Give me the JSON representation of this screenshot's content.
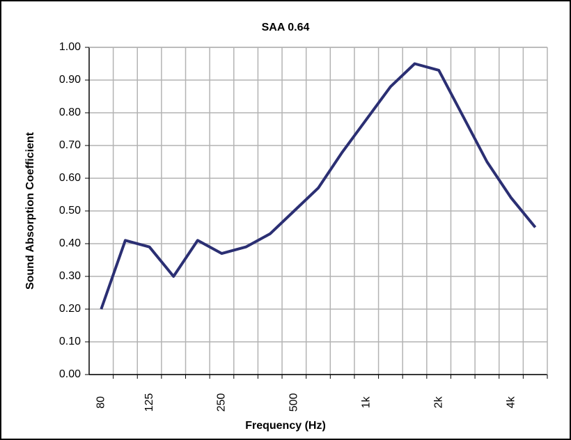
{
  "chart_data": {
    "type": "line",
    "title": "SAA 0.64",
    "x_label": "Frequency (Hz)",
    "y_label": "Sound Absorption Coefficient",
    "categories": [
      "80",
      null,
      "125",
      null,
      null,
      "250",
      null,
      null,
      "500",
      null,
      null,
      "1k",
      null,
      null,
      "2k",
      null,
      null,
      "4k",
      null
    ],
    "series": [
      {
        "name": "SAA 0.64",
        "color": "#2b2f73",
        "values": [
          0.2,
          0.41,
          0.39,
          0.3,
          0.41,
          0.37,
          0.39,
          0.43,
          0.5,
          0.57,
          0.68,
          0.78,
          0.88,
          0.95,
          0.93,
          0.79,
          0.65,
          0.54,
          0.45
        ]
      }
    ],
    "ylim": [
      0,
      1
    ],
    "yticks": [
      {
        "value": 0,
        "label": "0.00"
      },
      {
        "value": 0.1,
        "label": "0.10"
      },
      {
        "value": 0.2,
        "label": "0.20"
      },
      {
        "value": 0.3,
        "label": "0.30"
      },
      {
        "value": 0.4,
        "label": "0.40"
      },
      {
        "value": 0.5,
        "label": "0.50"
      },
      {
        "value": 0.6,
        "label": "0.60"
      },
      {
        "value": 0.7,
        "label": "0.70"
      },
      {
        "value": 0.8,
        "label": "0.80"
      },
      {
        "value": 0.9,
        "label": "0.90"
      },
      {
        "value": 1,
        "label": "1.00"
      }
    ],
    "grid": true
  }
}
